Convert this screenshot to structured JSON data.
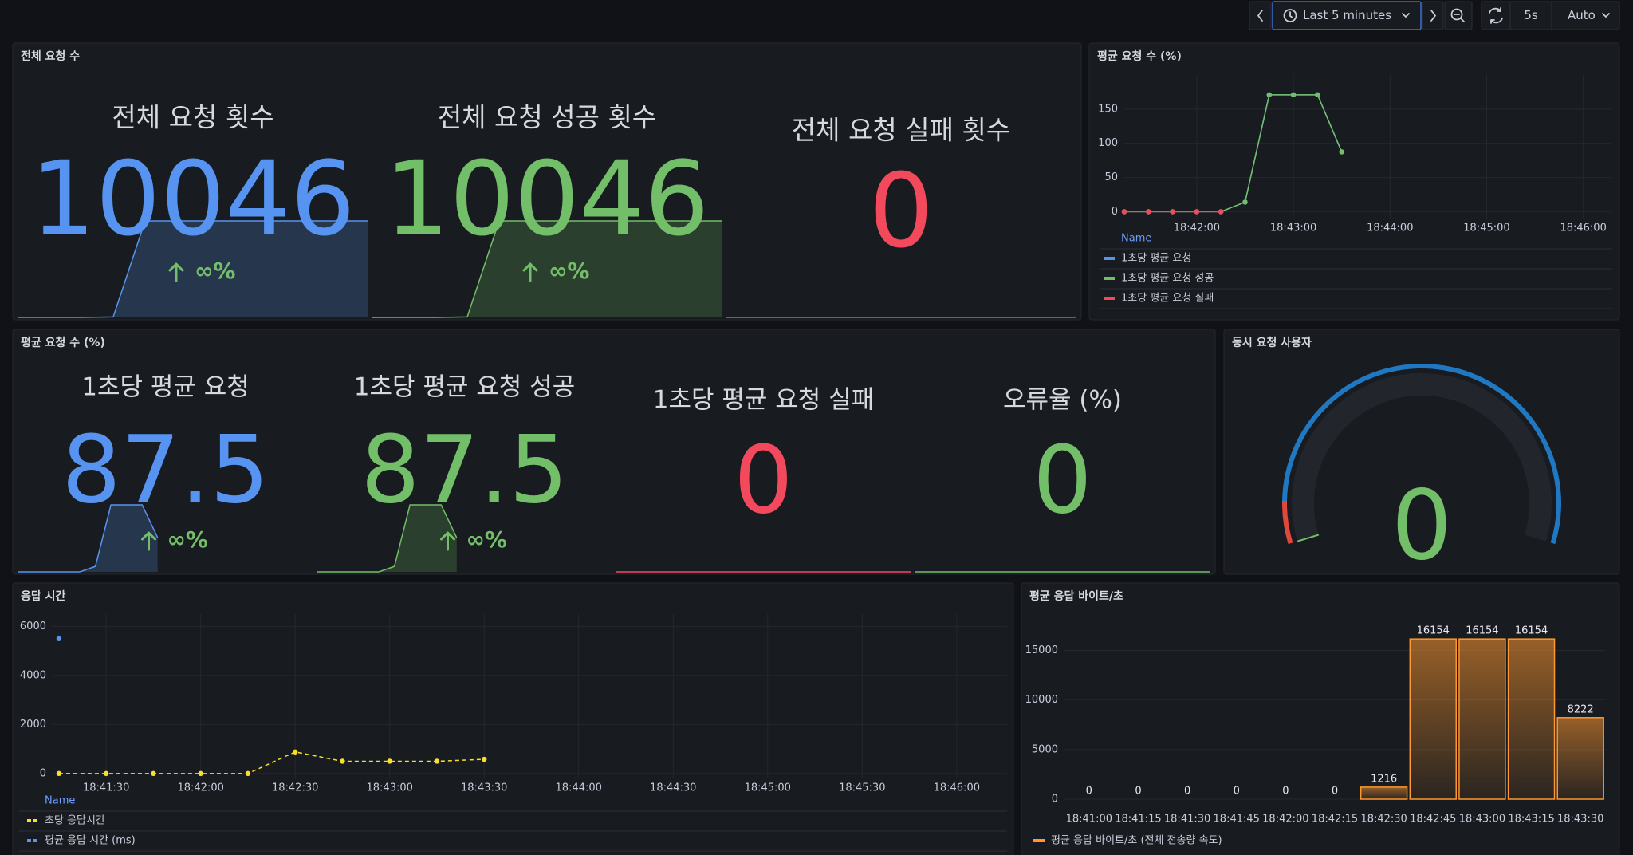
{
  "toolbar": {
    "time_range": "Last 5 minutes",
    "refresh_interval": "5s",
    "refresh_mode": "Auto"
  },
  "stat_panels": [
    {
      "title": "전체 요청 수",
      "stats": [
        {
          "label": "전체 요청 횟수",
          "value": 10046,
          "color": "#5794f2",
          "change": "∞%",
          "sparkline": [
            0,
            0,
            0,
            50,
            10046,
            10046,
            10046,
            10046,
            10046,
            10046,
            10046,
            10046
          ]
        },
        {
          "label": "전체 요청 성공 횟수",
          "value": 10046,
          "color": "#73bf69",
          "change": "∞%",
          "sparkline": [
            0,
            0,
            0,
            50,
            10046,
            10046,
            10046,
            10046,
            10046,
            10046,
            10046,
            10046
          ]
        },
        {
          "label": "전체 요청 실패 횟수",
          "value": 0,
          "color": "#f2495c",
          "sparkline": [
            0,
            0,
            0,
            0,
            0,
            0,
            0,
            0,
            0,
            0,
            0,
            0
          ]
        }
      ]
    },
    {
      "title": "평균 요청 수 (%)",
      "stats": [
        {
          "label": "1초당 평균 요청",
          "value": 87.5,
          "color": "#5794f2",
          "change": "∞%",
          "sparkline": [
            0,
            0,
            0,
            0,
            0,
            14,
            171,
            171,
            171,
            87.5,
            null,
            null,
            null,
            null,
            null,
            null,
            null,
            null,
            null,
            null
          ]
        },
        {
          "label": "1초당 평균 요청 성공",
          "value": 87.5,
          "color": "#73bf69",
          "change": "∞%",
          "sparkline": [
            0,
            0,
            0,
            0,
            0,
            14,
            171,
            171,
            171,
            87.5,
            null,
            null,
            null,
            null,
            null,
            null,
            null,
            null,
            null,
            null
          ]
        },
        {
          "label": "1초당 평균 요청 실패",
          "value": 0,
          "color": "#f2495c",
          "sparkline": [
            0,
            0,
            0,
            0,
            0,
            0,
            0,
            0,
            0,
            0,
            0,
            0,
            0,
            0,
            0,
            0,
            0,
            0,
            0,
            0
          ]
        },
        {
          "label": "오류율 (%)",
          "value": 0,
          "color": "#73bf69",
          "sparkline": [
            0,
            0,
            0,
            0,
            0,
            0,
            0,
            0,
            0,
            0,
            0,
            0,
            0,
            0,
            0,
            0,
            0,
            0,
            0,
            0
          ]
        }
      ]
    }
  ],
  "gauge": {
    "title": "동시 요청 사용자",
    "value": 0,
    "color": "#73bf69"
  },
  "chart_data": [
    {
      "type": "line",
      "title": "평균 요청 수 (%)",
      "x": [
        "18:41:15",
        "18:41:30",
        "18:41:45",
        "18:42:00",
        "18:42:15",
        "18:42:30",
        "18:42:45",
        "18:43:00",
        "18:43:15",
        "18:43:30"
      ],
      "xlim": [
        "18:41:15",
        "18:46:17"
      ],
      "xticks": [
        "18:42:00",
        "18:43:00",
        "18:44:00",
        "18:45:00",
        "18:46:00"
      ],
      "ylim": [
        -10,
        200
      ],
      "yticks": [
        0,
        50,
        100,
        150
      ],
      "grid": true,
      "legend_header": "Name",
      "series": [
        {
          "name": "1초당 평균 요청",
          "color": "#5794f2",
          "values": [
            0,
            0,
            0,
            0,
            0,
            14,
            171,
            171,
            171,
            87.5
          ]
        },
        {
          "name": "1초당 평균 요청 성공",
          "color": "#73bf69",
          "values": [
            0,
            0,
            0,
            0,
            0,
            14,
            171,
            171,
            171,
            87.5
          ]
        },
        {
          "name": "1초당 평균 요청 실패",
          "color": "#f2495c",
          "values": [
            0,
            0,
            0,
            0,
            0,
            null,
            null,
            null,
            null,
            null
          ]
        }
      ]
    },
    {
      "type": "line",
      "title": "응답 시간",
      "x": [
        "18:41:15",
        "18:41:30",
        "18:41:45",
        "18:42:00",
        "18:42:15",
        "18:42:30",
        "18:42:45",
        "18:43:00",
        "18:43:15",
        "18:43:30"
      ],
      "xlim": [
        "18:41:13",
        "18:46:16"
      ],
      "xticks": [
        "18:41:30",
        "18:42:00",
        "18:42:30",
        "18:43:00",
        "18:43:30",
        "18:44:00",
        "18:44:30",
        "18:45:00",
        "18:45:30",
        "18:46:00"
      ],
      "ylim": [
        -200,
        6500
      ],
      "yticks": [
        0,
        2000,
        4000,
        6000
      ],
      "grid": true,
      "legend_header": "Name",
      "series": [
        {
          "name": "초당 응답시간",
          "color": "#fade2a",
          "dashed": true,
          "values": [
            0,
            0,
            0,
            0,
            0,
            880,
            500,
            500,
            500,
            580
          ]
        },
        {
          "name": "평균 응답 시간 (ms)",
          "color": "#5794f2",
          "dashed": true,
          "values": [
            5500,
            null,
            null,
            null,
            null,
            null,
            null,
            null,
            null,
            null
          ]
        }
      ]
    },
    {
      "type": "bar",
      "title": "평균 응답 바이트/초",
      "categories": [
        "18:41:00",
        "18:41:15",
        "18:41:30",
        "18:41:45",
        "18:42:00",
        "18:42:15",
        "18:42:30",
        "18:42:45",
        "18:43:00",
        "18:43:15",
        "18:43:30"
      ],
      "ylim": [
        0,
        18500
      ],
      "yticks": [
        0,
        5000,
        10000,
        15000
      ],
      "grid": true,
      "series": [
        {
          "name": "평균 응답 바이트/초 (전체 전송량 속도)",
          "color": "#ff9830",
          "values": [
            0,
            0,
            0,
            0,
            0,
            0,
            1216,
            16154,
            16154,
            16154,
            8222
          ]
        }
      ]
    }
  ]
}
